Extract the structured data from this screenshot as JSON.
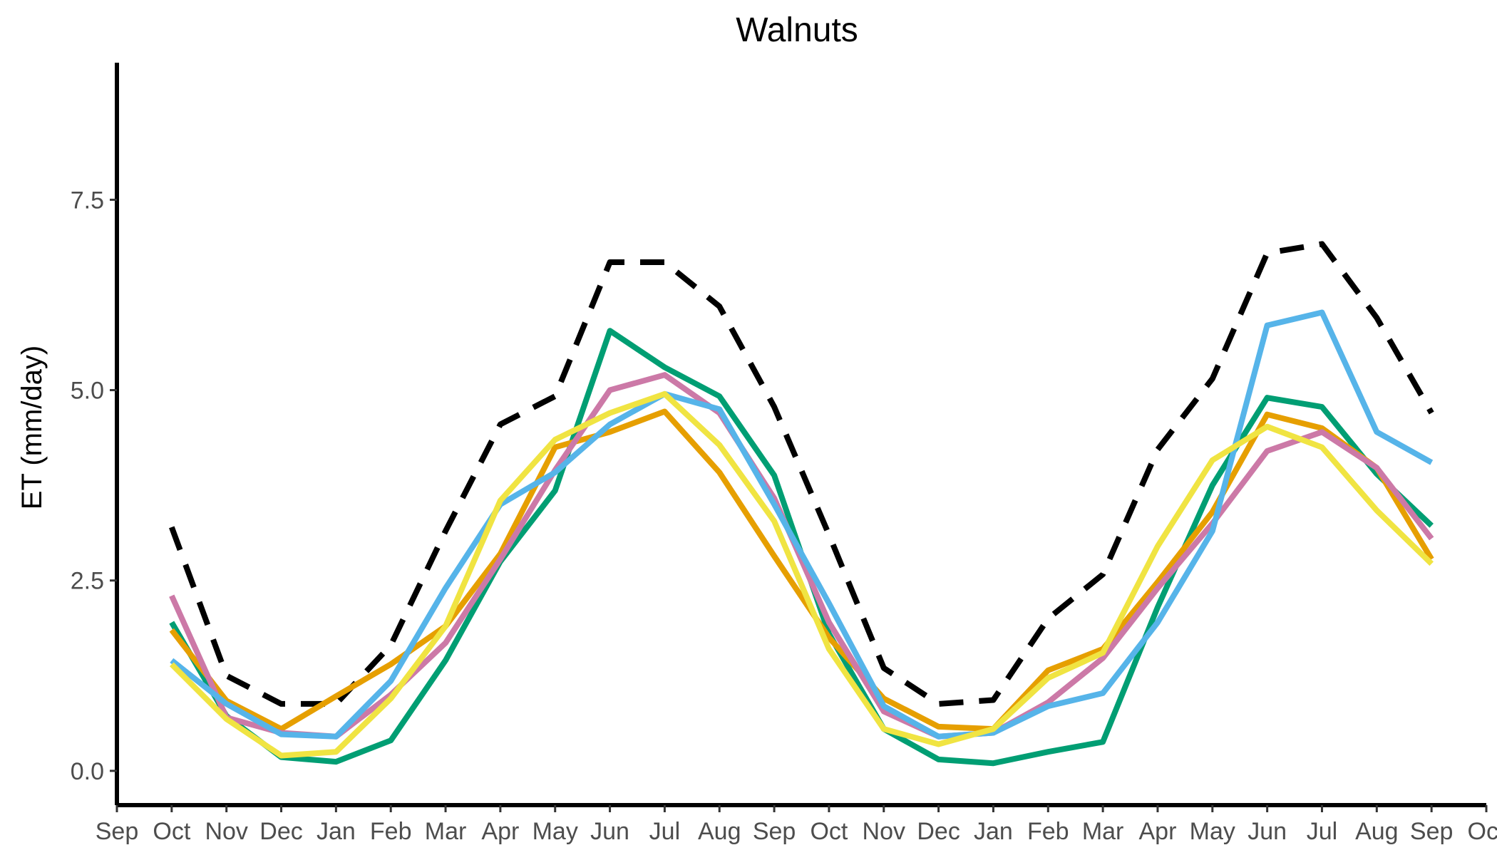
{
  "chart_data": {
    "type": "line",
    "title": "Walnuts",
    "xlabel": "",
    "ylabel": "ET (mm/day)",
    "ylim": [
      -0.45,
      9.3
    ],
    "yticks": [
      0.0,
      2.5,
      5.0,
      7.5
    ],
    "ytick_labels": [
      "0.0",
      "2.5",
      "5.0",
      "7.5"
    ],
    "xlim": [
      0,
      25
    ],
    "xticks": [
      0,
      1,
      2,
      3,
      4,
      5,
      6,
      7,
      8,
      9,
      10,
      11,
      12,
      13,
      14,
      15,
      16,
      17,
      18,
      19,
      20,
      21,
      22,
      23,
      24,
      25
    ],
    "xtick_labels": [
      "Sep",
      "Oct",
      "Nov",
      "Dec",
      "Jan",
      "Feb",
      "Mar",
      "Apr",
      "May",
      "Jun",
      "Jul",
      "Aug",
      "Sep",
      "Oct",
      "Nov",
      "Dec",
      "Jan",
      "Feb",
      "Mar",
      "Apr",
      "May",
      "Jun",
      "Jul",
      "Aug",
      "Sep",
      "Oct"
    ],
    "legend": "none",
    "grid": false,
    "x": [
      1,
      2,
      3,
      4,
      5,
      6,
      7,
      8,
      9,
      10,
      11,
      12,
      13,
      14,
      15,
      16,
      17,
      18,
      19,
      20,
      21,
      22,
      23,
      24
    ],
    "series": [
      {
        "color": "#000000",
        "dash": "dashed",
        "values": [
          3.2,
          1.25,
          0.88,
          0.88,
          1.65,
          3.15,
          4.55,
          4.92,
          6.68,
          6.68,
          6.1,
          4.78,
          3.1,
          1.35,
          0.88,
          0.93,
          2.0,
          2.58,
          4.22,
          5.15,
          6.8,
          6.92,
          5.95,
          4.7
        ]
      },
      {
        "color": "#009E73",
        "dash": "solid",
        "values": [
          1.95,
          0.72,
          0.18,
          0.12,
          0.4,
          1.45,
          2.75,
          3.68,
          5.78,
          5.3,
          4.92,
          3.88,
          1.8,
          0.55,
          0.15,
          0.1,
          0.25,
          0.38,
          2.15,
          3.75,
          4.9,
          4.78,
          3.9,
          3.22
        ]
      },
      {
        "color": "#E69F00",
        "dash": "solid",
        "values": [
          1.85,
          0.92,
          0.55,
          0.98,
          1.4,
          1.9,
          2.85,
          4.25,
          4.45,
          4.72,
          3.92,
          2.82,
          1.75,
          0.95,
          0.58,
          0.55,
          1.32,
          1.6,
          2.48,
          3.4,
          4.68,
          4.5,
          3.98,
          2.78
        ]
      },
      {
        "color": "#CC79A7",
        "dash": "solid",
        "values": [
          2.3,
          0.7,
          0.5,
          0.45,
          1.0,
          1.68,
          2.78,
          3.95,
          5.0,
          5.2,
          4.7,
          3.58,
          1.95,
          0.78,
          0.45,
          0.5,
          0.9,
          1.48,
          2.4,
          3.25,
          4.2,
          4.45,
          3.98,
          3.05
        ]
      },
      {
        "color": "#56B4E9",
        "dash": "solid",
        "values": [
          1.45,
          0.88,
          0.48,
          0.45,
          1.18,
          2.4,
          3.5,
          3.92,
          4.55,
          4.95,
          4.75,
          3.5,
          2.2,
          0.85,
          0.45,
          0.5,
          0.85,
          1.02,
          1.95,
          3.15,
          5.85,
          6.02,
          4.45,
          4.05
        ]
      },
      {
        "color": "#F0E442",
        "dash": "solid",
        "values": [
          1.4,
          0.68,
          0.2,
          0.25,
          0.95,
          1.9,
          3.55,
          4.35,
          4.7,
          4.95,
          4.28,
          3.28,
          1.6,
          0.55,
          0.35,
          0.55,
          1.22,
          1.55,
          2.95,
          4.08,
          4.52,
          4.25,
          3.42,
          2.72
        ]
      }
    ]
  }
}
